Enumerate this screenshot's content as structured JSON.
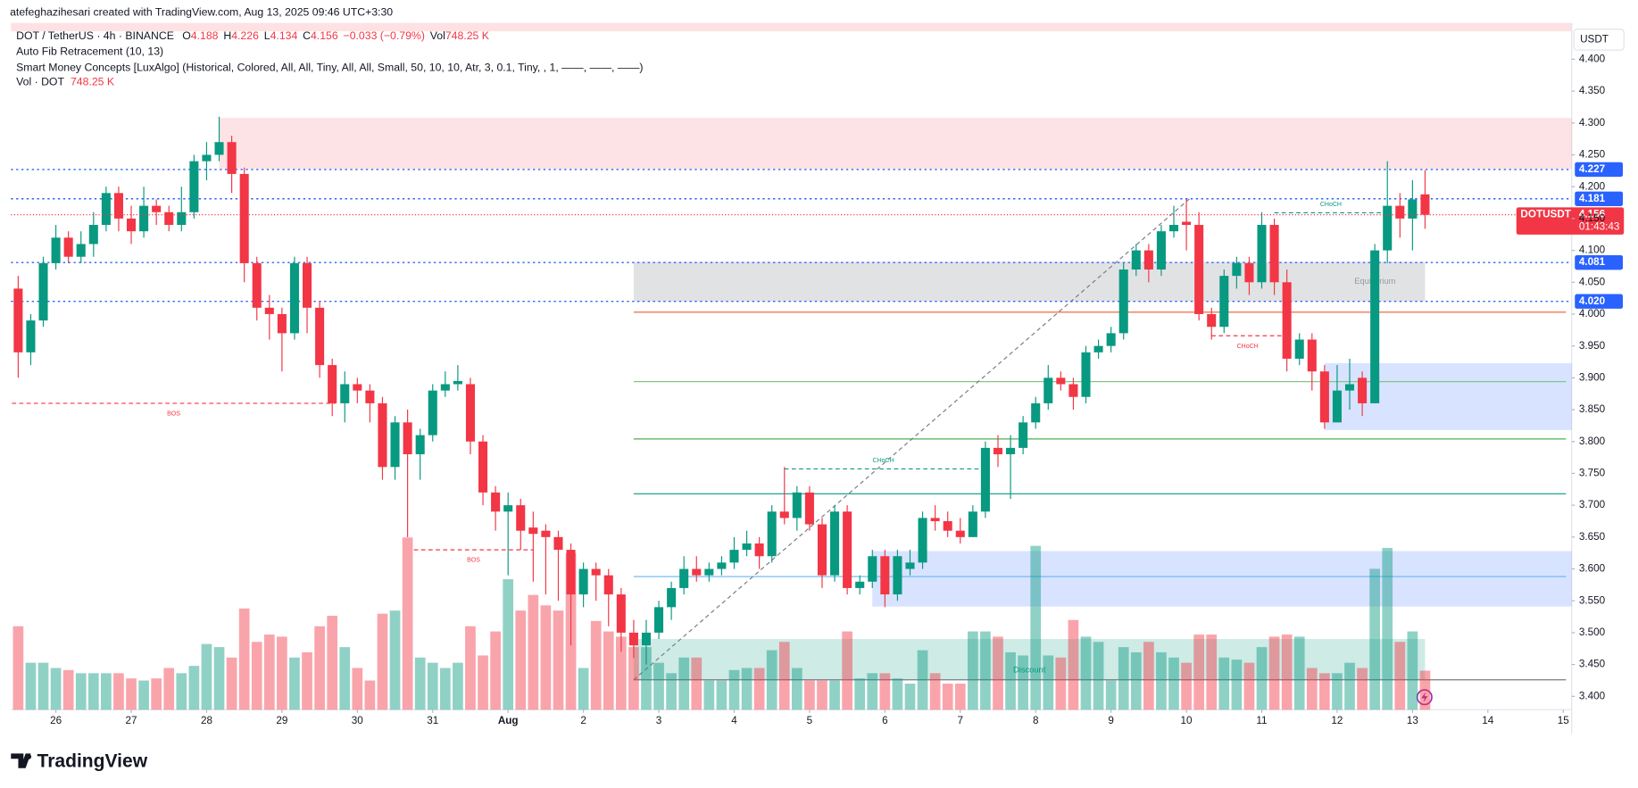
{
  "header": {
    "credit": "atefeghazihesari created with TradingView.com, Aug 13, 2025 09:46 UTC+3:30",
    "symbol": "DOT / TetherUS · 4h · BINANCE",
    "ohlc": [
      {
        "key": "O",
        "value": 4.188
      },
      {
        "key": "H",
        "value": 4.226
      },
      {
        "key": "L",
        "value": 4.134
      },
      {
        "key": "C",
        "value": 4.156
      }
    ],
    "change": "−0.033 (−0.79%)",
    "vol_key": "Vol",
    "vol": "748.25 K",
    "indicators": [
      "Auto Fib Retracement (10, 13)",
      "Smart Money Concepts [LuxAlgo] (Historical, Colored, All, All, Tiny, All, All, Small, 50, 10, 10, Atr, 3, 0.1, Tiny, , 1, ——, ——, ——)"
    ],
    "vol_indicator": "Vol · DOT",
    "vol_indicator_value": "748.25 K"
  },
  "currency": "USDT",
  "brand": "TradingView",
  "chart_data": {
    "type": "candlestick",
    "up_color": "#089981",
    "down_color": "#f23645",
    "xlim": [
      -14.3,
      482.7
    ],
    "ylim": [
      3.379,
      4.457
    ],
    "xticks": [
      {
        "value": 0,
        "label": "26"
      },
      {
        "value": 24,
        "label": "27"
      },
      {
        "value": 48,
        "label": "28"
      },
      {
        "value": 72,
        "label": "29"
      },
      {
        "value": 96,
        "label": "30"
      },
      {
        "value": 120,
        "label": "31"
      },
      {
        "value": 144,
        "label": "Aug"
      },
      {
        "value": 168,
        "label": "2"
      },
      {
        "value": 192,
        "label": "3"
      },
      {
        "value": 216,
        "label": "4"
      },
      {
        "value": 240,
        "label": "5"
      },
      {
        "value": 264,
        "label": "6"
      },
      {
        "value": 288,
        "label": "7"
      },
      {
        "value": 312,
        "label": "8"
      },
      {
        "value": 336,
        "label": "9"
      },
      {
        "value": 360,
        "label": "10"
      },
      {
        "value": 384,
        "label": "11"
      },
      {
        "value": 408,
        "label": "12"
      },
      {
        "value": 432,
        "label": "13"
      },
      {
        "value": 456,
        "label": "14"
      },
      {
        "value": 480,
        "label": "15"
      }
    ],
    "yticks": [
      {
        "value": 4.4,
        "label": "4.400"
      },
      {
        "value": 4.35,
        "label": "4.350"
      },
      {
        "value": 4.3,
        "label": "4.300"
      },
      {
        "value": 4.25,
        "label": "4.250"
      },
      {
        "value": 4.2,
        "label": "4.200"
      },
      {
        "value": 4.15,
        "label": "4.150"
      },
      {
        "value": 4.1,
        "label": "4.100"
      },
      {
        "value": 4.05,
        "label": "4.050"
      },
      {
        "value": 4.0,
        "label": "4.000"
      },
      {
        "value": 3.95,
        "label": "3.950"
      },
      {
        "value": 3.9,
        "label": "3.900"
      },
      {
        "value": 3.85,
        "label": "3.850"
      },
      {
        "value": 3.8,
        "label": "3.800"
      },
      {
        "value": 3.75,
        "label": "3.750"
      },
      {
        "value": 3.7,
        "label": "3.700"
      },
      {
        "value": 3.65,
        "label": "3.650"
      },
      {
        "value": 3.6,
        "label": "3.600"
      },
      {
        "value": 3.55,
        "label": "3.550"
      },
      {
        "value": 3.5,
        "label": "3.500"
      },
      {
        "value": 3.45,
        "label": "3.450"
      },
      {
        "value": 3.4,
        "label": "3.400"
      }
    ],
    "x": [
      -12,
      -8,
      -4,
      0,
      4,
      8,
      12,
      16,
      20,
      24,
      28,
      32,
      36,
      40,
      44,
      48,
      52,
      56,
      60,
      64,
      68,
      72,
      76,
      80,
      84,
      88,
      92,
      96,
      100,
      104,
      108,
      112,
      116,
      120,
      124,
      128,
      132,
      136,
      140,
      144,
      148,
      152,
      156,
      160,
      164,
      168,
      172,
      176,
      180,
      184,
      188,
      192,
      196,
      200,
      204,
      208,
      212,
      216,
      220,
      224,
      228,
      232,
      236,
      240,
      244,
      248,
      252,
      256,
      260,
      264,
      268,
      272,
      276,
      280,
      284,
      288,
      292,
      296,
      300,
      304,
      308,
      312,
      316,
      320,
      324,
      328,
      332,
      336,
      340,
      344,
      348,
      352,
      356,
      360,
      364,
      368,
      372,
      376,
      380,
      384,
      388,
      392,
      396,
      400,
      404,
      408,
      412,
      416,
      420,
      424,
      428,
      432,
      436
    ],
    "open": [
      4.04,
      3.94,
      3.99,
      4.08,
      4.12,
      4.09,
      4.11,
      4.14,
      4.19,
      4.15,
      4.13,
      4.17,
      4.16,
      4.14,
      4.16,
      4.24,
      4.25,
      4.27,
      4.22,
      4.08,
      4.01,
      4.0,
      3.97,
      4.08,
      4.01,
      3.92,
      3.86,
      3.89,
      3.88,
      3.86,
      3.76,
      3.83,
      3.78,
      3.81,
      3.88,
      3.89,
      3.89,
      3.8,
      3.72,
      3.69,
      3.7,
      3.665,
      3.66,
      3.65,
      3.63,
      3.56,
      3.6,
      3.59,
      3.56,
      3.5,
      3.48,
      3.5,
      3.54,
      3.57,
      3.6,
      3.59,
      3.6,
      3.61,
      3.63,
      3.64,
      3.62,
      3.69,
      3.68,
      3.72,
      3.67,
      3.59,
      3.69,
      3.57,
      3.58,
      3.62,
      3.56,
      3.6,
      3.61,
      3.68,
      3.675,
      3.66,
      3.65,
      3.69,
      3.79,
      3.78,
      3.79,
      3.83,
      3.86,
      3.9,
      3.89,
      3.87,
      3.94,
      3.95,
      3.97,
      4.07,
      4.1,
      4.07,
      4.13,
      4.145,
      4.14,
      4.0,
      3.98,
      4.06,
      4.08,
      4.05,
      4.14,
      4.05,
      3.93,
      3.96,
      3.91,
      3.83,
      3.88,
      3.9,
      3.86,
      4.1,
      4.17,
      4.15,
      4.188
    ],
    "high": [
      4.06,
      4.0,
      4.09,
      4.14,
      4.13,
      4.13,
      4.16,
      4.2,
      4.2,
      4.17,
      4.2,
      4.18,
      4.17,
      4.2,
      4.25,
      4.27,
      4.31,
      4.28,
      4.23,
      4.09,
      4.03,
      4.01,
      4.09,
      4.09,
      4.02,
      3.93,
      3.91,
      3.9,
      3.89,
      3.87,
      3.84,
      3.85,
      3.82,
      3.89,
      3.91,
      3.92,
      3.9,
      3.81,
      3.73,
      3.72,
      3.71,
      3.69,
      3.67,
      3.66,
      3.64,
      3.61,
      3.61,
      3.6,
      3.57,
      3.52,
      3.52,
      3.55,
      3.58,
      3.62,
      3.62,
      3.61,
      3.62,
      3.65,
      3.66,
      3.65,
      3.7,
      3.76,
      3.73,
      3.73,
      3.68,
      3.7,
      3.7,
      3.59,
      3.63,
      3.63,
      3.63,
      3.63,
      3.69,
      3.7,
      3.69,
      3.68,
      3.7,
      3.8,
      3.81,
      3.81,
      3.84,
      3.87,
      3.92,
      3.91,
      3.9,
      3.95,
      3.96,
      3.98,
      4.08,
      4.11,
      4.11,
      4.14,
      4.17,
      4.18,
      4.16,
      4.01,
      4.07,
      4.09,
      4.09,
      4.16,
      4.15,
      4.07,
      3.97,
      3.97,
      3.92,
      3.92,
      3.93,
      3.91,
      4.11,
      4.24,
      4.19,
      4.21,
      4.226
    ],
    "low": [
      3.9,
      3.92,
      3.98,
      4.07,
      4.08,
      4.08,
      4.09,
      4.13,
      4.13,
      4.11,
      4.12,
      4.14,
      4.13,
      4.13,
      4.15,
      4.21,
      4.24,
      4.19,
      4.05,
      3.99,
      3.96,
      3.91,
      3.96,
      3.97,
      3.9,
      3.84,
      3.83,
      3.86,
      3.83,
      3.74,
      3.74,
      3.65,
      3.74,
      3.8,
      3.87,
      3.88,
      3.78,
      3.7,
      3.66,
      3.59,
      3.63,
      3.58,
      3.56,
      3.55,
      3.48,
      3.54,
      3.55,
      3.51,
      3.47,
      3.46,
      3.45,
      3.49,
      3.52,
      3.56,
      3.58,
      3.58,
      3.59,
      3.6,
      3.62,
      3.6,
      3.61,
      3.67,
      3.66,
      3.66,
      3.57,
      3.58,
      3.56,
      3.56,
      3.57,
      3.54,
      3.55,
      3.59,
      3.6,
      3.66,
      3.65,
      3.64,
      3.65,
      3.68,
      3.76,
      3.71,
      3.78,
      3.82,
      3.85,
      3.88,
      3.85,
      3.86,
      3.93,
      3.94,
      3.96,
      4.06,
      4.05,
      4.06,
      4.12,
      4.1,
      3.99,
      3.96,
      3.97,
      4.04,
      4.03,
      4.04,
      4.03,
      3.91,
      3.92,
      3.88,
      3.82,
      3.83,
      3.85,
      3.84,
      3.86,
      4.08,
      4.12,
      4.1,
      4.134
    ],
    "close": [
      3.94,
      3.99,
      4.08,
      4.12,
      4.09,
      4.11,
      4.14,
      4.19,
      4.15,
      4.13,
      4.17,
      4.16,
      4.14,
      4.16,
      4.24,
      4.25,
      4.27,
      4.22,
      4.08,
      4.01,
      4.0,
      3.97,
      4.08,
      4.01,
      3.92,
      3.86,
      3.89,
      3.88,
      3.86,
      3.76,
      3.83,
      3.78,
      3.81,
      3.88,
      3.89,
      3.895,
      3.8,
      3.72,
      3.69,
      3.7,
      3.66,
      3.655,
      3.65,
      3.63,
      3.56,
      3.6,
      3.59,
      3.56,
      3.5,
      3.48,
      3.5,
      3.54,
      3.57,
      3.6,
      3.59,
      3.6,
      3.61,
      3.63,
      3.64,
      3.62,
      3.69,
      3.68,
      3.72,
      3.67,
      3.59,
      3.69,
      3.57,
      3.58,
      3.62,
      3.56,
      3.62,
      3.61,
      3.68,
      3.675,
      3.66,
      3.65,
      3.69,
      3.79,
      3.78,
      3.79,
      3.83,
      3.86,
      3.9,
      3.89,
      3.87,
      3.94,
      3.95,
      3.97,
      4.07,
      4.1,
      4.07,
      4.13,
      4.14,
      4.14,
      4.0,
      3.98,
      4.06,
      4.08,
      4.05,
      4.14,
      4.05,
      3.93,
      3.96,
      3.91,
      3.83,
      3.88,
      3.89,
      3.86,
      4.1,
      4.17,
      4.15,
      4.18,
      4.156
    ],
    "volume": [
      1600,
      900,
      900,
      800,
      760,
      700,
      700,
      700,
      700,
      600,
      560,
      600,
      800,
      700,
      840,
      1260,
      1200,
      1000,
      1940,
      1300,
      1440,
      1400,
      1000,
      1100,
      1600,
      1800,
      1200,
      800,
      560,
      1840,
      1900,
      3300,
      1000,
      900,
      800,
      900,
      1600,
      1040,
      1500,
      2500,
      1900,
      2200,
      2000,
      1900,
      3000,
      800,
      1700,
      1500,
      1400,
      1200,
      1200,
      900,
      700,
      1000,
      1000,
      560,
      560,
      760,
      800,
      800,
      1140,
      1300,
      800,
      560,
      560,
      560,
      1500,
      600,
      700,
      700,
      600,
      500,
      1140,
      700,
      500,
      500,
      1500,
      1500,
      1400,
      1100,
      1040,
      3140,
      1040,
      1000,
      1720,
      1400,
      1300,
      560,
      1200,
      1100,
      1300,
      1100,
      1000,
      900,
      1440,
      1440,
      1000,
      960,
      900,
      1200,
      1400,
      1440,
      1400,
      800,
      700,
      700,
      900,
      800,
      2700,
      3100,
      1300,
      1500,
      748.25
    ],
    "zones": [
      {
        "x": [
          52,
          482.7
        ],
        "y": [
          4.228,
          4.308
        ],
        "color": "#f23645",
        "opacity": 0.14
      },
      {
        "x": [
          184,
          436
        ],
        "y": [
          4.02,
          4.082
        ],
        "color": "#787b86",
        "opacity": 0.22,
        "label": "Equilibrium"
      },
      {
        "x": [
          404,
          482.7
        ],
        "y": [
          3.818,
          3.923
        ],
        "color": "#2962ff",
        "opacity": 0.18
      },
      {
        "x": [
          260,
          482.7
        ],
        "y": [
          3.541,
          3.628
        ],
        "color": "#2962ff",
        "opacity": 0.18
      },
      {
        "x": [
          184,
          436
        ],
        "y": [
          3.426,
          3.49
        ],
        "color": "#089981",
        "opacity": 0.2,
        "label": "Discount"
      }
    ],
    "fib_x": [
      184,
      436
    ],
    "fib_levels": [
      {
        "price": 4.003,
        "color": "#f05a28"
      },
      {
        "price": 3.894,
        "color": "#81c784"
      },
      {
        "price": 3.804,
        "color": "#4caf50"
      },
      {
        "price": 3.718,
        "color": "#089981"
      },
      {
        "price": 3.588,
        "color": "#64b5f6"
      },
      {
        "price": 3.426,
        "color": "#787b86"
      }
    ],
    "fib_trend": {
      "x": [
        184,
        361
      ],
      "y": [
        3.426,
        4.181
      ]
    },
    "structures": [
      {
        "label": "BOS",
        "x": [
          -14,
          89
        ],
        "price": 3.86,
        "color": "#f23645",
        "side": "below"
      },
      {
        "label": "BOS",
        "x": [
          114,
          152
        ],
        "price": 3.63,
        "color": "#f23645",
        "side": "below"
      },
      {
        "label": "CHoCH",
        "x": [
          232,
          295
        ],
        "price": 3.757,
        "color": "#089981",
        "side": "above"
      },
      {
        "label": "CHoCH",
        "x": [
          388,
          424
        ],
        "price": 4.159,
        "color": "#089981",
        "side": "above"
      },
      {
        "label": "CHoCH",
        "x": [
          368,
          391
        ],
        "price": 3.966,
        "color": "#f23645",
        "side": "below"
      }
    ],
    "levels": [
      4.227,
      4.181,
      4.081,
      {
        "value": 4.02,
        "label": "4.020"
      }
    ],
    "level_color": "#2962ff",
    "last": {
      "symbol": "DOTUSDT",
      "price": 4.156,
      "countdown": "01:43:43"
    }
  }
}
